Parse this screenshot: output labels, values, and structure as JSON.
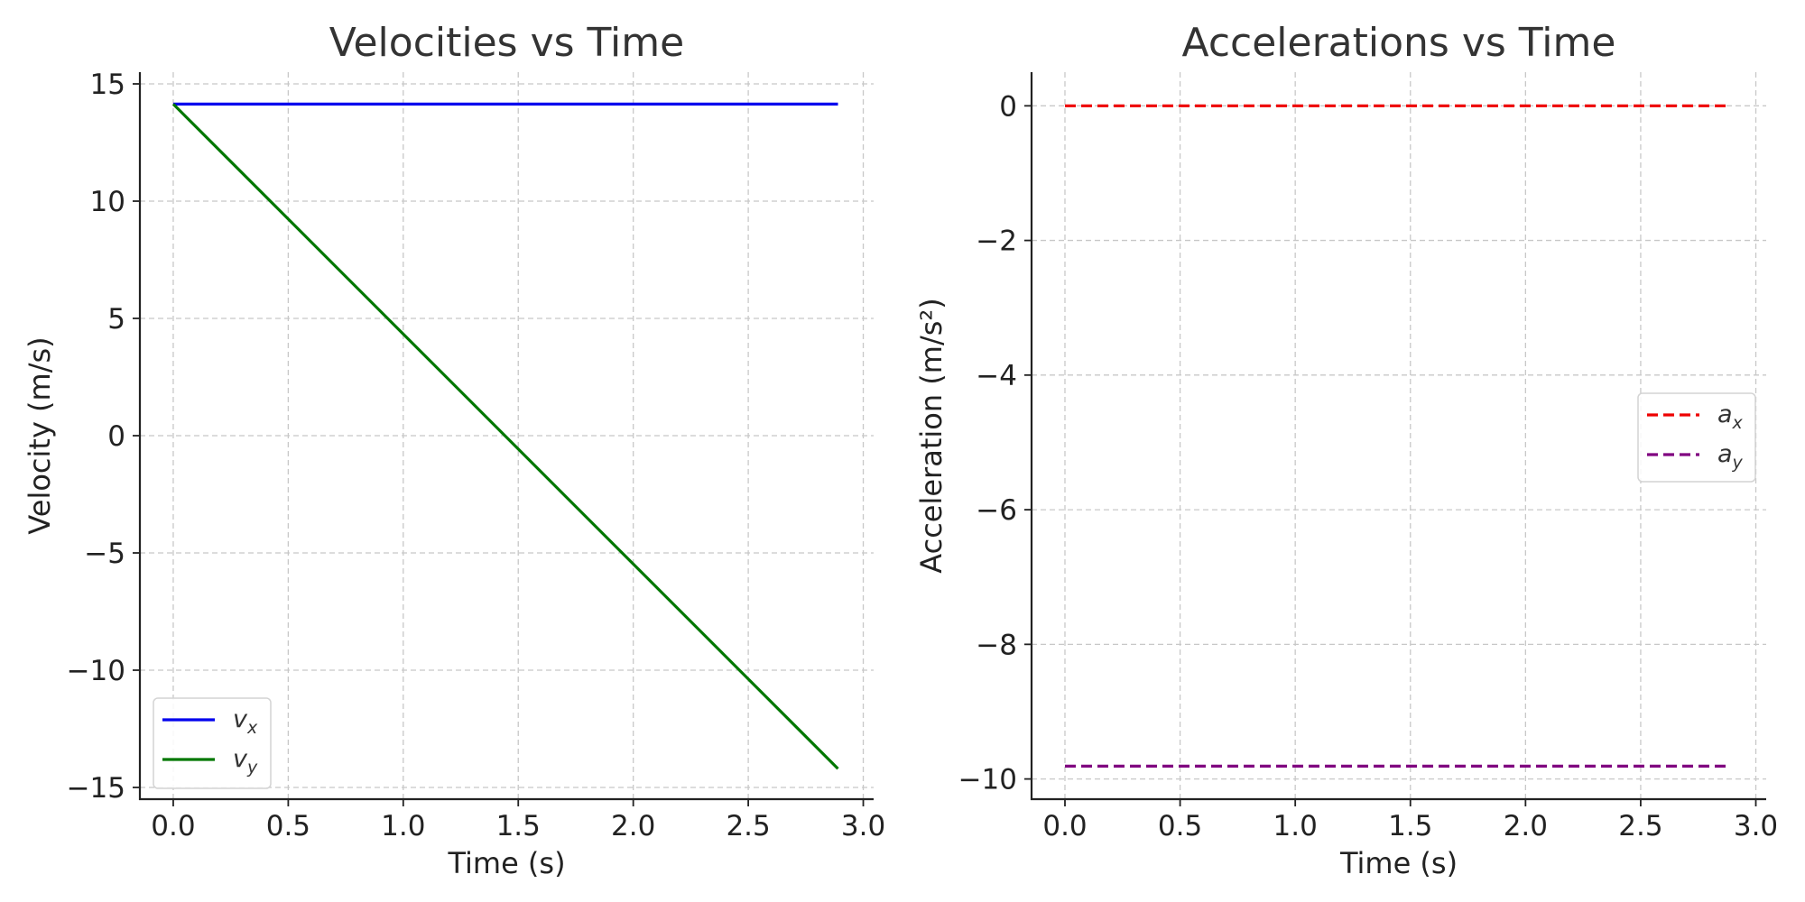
{
  "chart_data": [
    {
      "type": "line",
      "title": "Velocities vs Time",
      "xlabel": "Time (s)",
      "ylabel": "Velocity (m/s)",
      "xlim": [
        -0.145,
        3.045
      ],
      "ylim": [
        -15.5,
        15.5
      ],
      "xticks": [
        0.0,
        0.5,
        1.0,
        1.5,
        2.0,
        2.5,
        3.0
      ],
      "xtick_labels": [
        "0.0",
        "0.5",
        "1.0",
        "1.5",
        "2.0",
        "2.5",
        "3.0"
      ],
      "yticks": [
        15,
        10,
        5,
        0,
        -5,
        -10,
        -15
      ],
      "ytick_labels": [
        "15",
        "10",
        "5",
        "0",
        "−5",
        "−10",
        "−15"
      ],
      "grid": true,
      "legend": {
        "placement": "lower-left",
        "entries": [
          {
            "base": "v",
            "sub": "x"
          },
          {
            "base": "v",
            "sub": "y"
          }
        ]
      },
      "series": [
        {
          "name": "v_x",
          "color": "#0000ee",
          "dash": "solid",
          "x": [
            0.0,
            2.89
          ],
          "y": [
            14.14,
            14.14
          ]
        },
        {
          "name": "v_y",
          "color": "#007700",
          "dash": "solid",
          "x": [
            0.0,
            2.89
          ],
          "y": [
            14.14,
            -14.2
          ]
        }
      ]
    },
    {
      "type": "line",
      "title": "Accelerations vs Time",
      "xlabel": "Time (s)",
      "ylabel": "Acceleration (m/s²)",
      "xlim": [
        -0.145,
        3.045
      ],
      "ylim": [
        -10.3,
        0.5
      ],
      "xticks": [
        0.0,
        0.5,
        1.0,
        1.5,
        2.0,
        2.5,
        3.0
      ],
      "xtick_labels": [
        "0.0",
        "0.5",
        "1.0",
        "1.5",
        "2.0",
        "2.5",
        "3.0"
      ],
      "yticks": [
        0,
        -2,
        -4,
        -6,
        -8,
        -10
      ],
      "ytick_labels": [
        "0",
        "−2",
        "−4",
        "−6",
        "−8",
        "−10"
      ],
      "grid": true,
      "legend": {
        "placement": "center-right",
        "entries": [
          {
            "base": "a",
            "sub": "x"
          },
          {
            "base": "a",
            "sub": "y"
          }
        ]
      },
      "series": [
        {
          "name": "a_x",
          "color": "#ee0000",
          "dash": "dashed",
          "x": [
            0.0,
            2.89
          ],
          "y": [
            0,
            0
          ]
        },
        {
          "name": "a_y",
          "color": "#800080",
          "dash": "dashed",
          "x": [
            0.0,
            2.89
          ],
          "y": [
            -9.81,
            -9.81
          ]
        }
      ]
    }
  ]
}
